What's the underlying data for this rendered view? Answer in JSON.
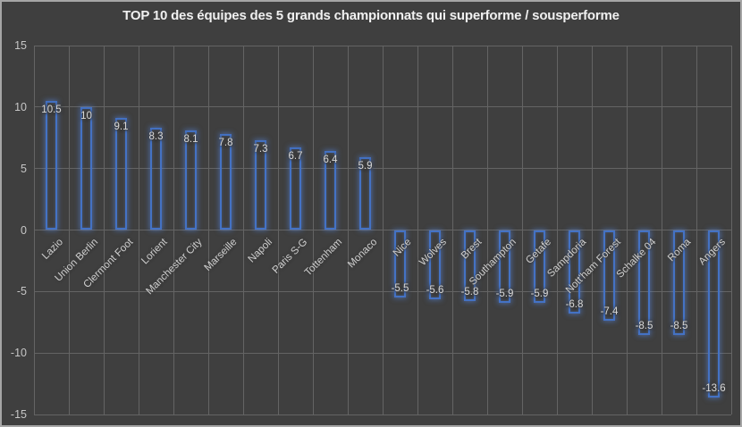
{
  "chart_data": {
    "type": "bar",
    "title": "TOP 10 des équipes des 5 grands championnats qui superforme / sousperforme",
    "categories": [
      "Lazio",
      "Union Berlin",
      "Clermont Foot",
      "Lorient",
      "Manchester City",
      "Marseille",
      "Napoli",
      "Paris S-G",
      "Tottenham",
      "Monaco",
      "Nice",
      "Wolves",
      "Brest",
      "Southampton",
      "Getafe",
      "Sampdoria",
      "Nott'ham Forest",
      "Schalke 04",
      "Roma",
      "Angers"
    ],
    "values": [
      10.5,
      10,
      9.1,
      8.3,
      8.1,
      7.8,
      7.3,
      6.7,
      6.4,
      5.9,
      -5.5,
      -5.6,
      -5.8,
      -5.9,
      -5.9,
      -6.8,
      -7.4,
      -8.5,
      -8.5,
      -13.6
    ],
    "data_labels": [
      "10.5",
      "10",
      "9.1",
      "8.3",
      "8.1",
      "7.8",
      "7.3",
      "6.7",
      "6.4",
      "5.9",
      "-5.5",
      "-5.6",
      "-5.8",
      "-5.9",
      "-5.9",
      "-6.8",
      "-7.4",
      "-8.5",
      "-8.5",
      "-13.6"
    ],
    "xlabel": "",
    "ylabel": "",
    "y_axis": {
      "min": -15,
      "max": 15,
      "step": 5,
      "ticks": [
        15,
        10,
        5,
        0,
        -5,
        -10,
        -15
      ]
    },
    "grid": true,
    "legend": "none",
    "category_label_rotation_deg": 45,
    "data_label_position": "inside-end",
    "colors": {
      "background": "#3F3F3F",
      "gridline": "#646464",
      "bar_outline": "#4472C4",
      "bar_fill": "transparent",
      "label_text": "#D8D8D8",
      "axis_text": "#C6C6C6",
      "title_text": "#F0F0F0",
      "chart_border": "#A6A6A6"
    }
  }
}
